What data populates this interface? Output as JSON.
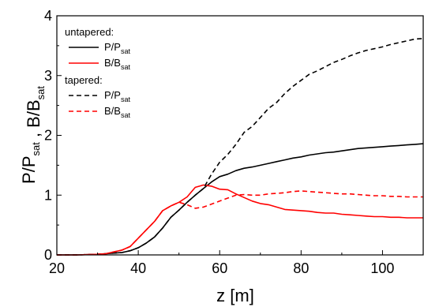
{
  "chart_data": {
    "type": "line",
    "title": "",
    "xlabel": "z [m]",
    "ylabel": {
      "parts": [
        {
          "text": "P/P",
          "sub": "sat"
        },
        {
          "text": " ,  B/B",
          "sub": "sat"
        }
      ]
    },
    "xlim": [
      20,
      110
    ],
    "ylim": [
      0,
      4
    ],
    "xticks": [
      20,
      40,
      60,
      80,
      100
    ],
    "yticks": [
      0,
      1,
      2,
      3,
      4
    ],
    "grid": false,
    "legend": {
      "position": "top-left",
      "groups": [
        {
          "heading": "untapered:",
          "entries": [
            {
              "series": 0,
              "text": "P/P",
              "sub": "sat"
            },
            {
              "series": 1,
              "text": "B/B",
              "sub": "sat"
            }
          ]
        },
        {
          "heading": "tapered:",
          "entries": [
            {
              "series": 2,
              "text": "P/P",
              "sub": "sat"
            },
            {
              "series": 3,
              "text": "B/B",
              "sub": "sat"
            }
          ]
        }
      ]
    },
    "series": [
      {
        "color": "#000000",
        "dash": "solid",
        "x": [
          20,
          25,
          30,
          32,
          34,
          36,
          38,
          40,
          42,
          44,
          46,
          48,
          50,
          52,
          54,
          56,
          58,
          60,
          62,
          64,
          66,
          68,
          70,
          72,
          74,
          76,
          78,
          80,
          82,
          84,
          86,
          88,
          90,
          92,
          94,
          96,
          98,
          100,
          102,
          104,
          106,
          108,
          110
        ],
        "y": [
          0,
          0,
          0.01,
          0.02,
          0.03,
          0.04,
          0.07,
          0.12,
          0.2,
          0.3,
          0.45,
          0.63,
          0.75,
          0.88,
          1.0,
          1.11,
          1.22,
          1.31,
          1.35,
          1.41,
          1.45,
          1.47,
          1.5,
          1.53,
          1.56,
          1.59,
          1.62,
          1.64,
          1.67,
          1.69,
          1.71,
          1.72,
          1.74,
          1.76,
          1.78,
          1.79,
          1.8,
          1.81,
          1.82,
          1.83,
          1.84,
          1.85,
          1.86
        ]
      },
      {
        "color": "#ff0000",
        "dash": "solid",
        "x": [
          20,
          25,
          30,
          32,
          34,
          36,
          38,
          40,
          42,
          44,
          46,
          48,
          50,
          52,
          54,
          56,
          58,
          60,
          62,
          64,
          66,
          68,
          70,
          72,
          74,
          76,
          78,
          80,
          82,
          84,
          86,
          88,
          90,
          92,
          94,
          96,
          98,
          100,
          102,
          104,
          106,
          108,
          110
        ],
        "y": [
          0,
          0,
          0.01,
          0.02,
          0.05,
          0.08,
          0.14,
          0.28,
          0.42,
          0.56,
          0.74,
          0.82,
          0.88,
          0.97,
          1.13,
          1.17,
          1.15,
          1.1,
          1.09,
          1.02,
          0.96,
          0.9,
          0.86,
          0.84,
          0.8,
          0.76,
          0.75,
          0.74,
          0.73,
          0.71,
          0.7,
          0.7,
          0.68,
          0.67,
          0.66,
          0.65,
          0.64,
          0.64,
          0.63,
          0.63,
          0.62,
          0.62,
          0.62
        ]
      },
      {
        "color": "#000000",
        "dash": "dashed",
        "x": [
          20,
          25,
          30,
          32,
          34,
          36,
          38,
          40,
          42,
          44,
          46,
          48,
          50,
          52,
          54,
          56,
          58,
          60,
          62,
          64,
          66,
          68,
          70,
          72,
          74,
          76,
          78,
          80,
          82,
          84,
          86,
          88,
          90,
          92,
          94,
          96,
          98,
          100,
          102,
          104,
          106,
          108,
          110
        ],
        "y": [
          0,
          0,
          0.01,
          0.02,
          0.03,
          0.04,
          0.07,
          0.12,
          0.2,
          0.3,
          0.45,
          0.63,
          0.75,
          0.88,
          1.0,
          1.11,
          1.35,
          1.55,
          1.68,
          1.85,
          2.05,
          2.15,
          2.3,
          2.45,
          2.55,
          2.7,
          2.82,
          2.92,
          3.02,
          3.08,
          3.15,
          3.22,
          3.27,
          3.33,
          3.38,
          3.42,
          3.45,
          3.48,
          3.52,
          3.55,
          3.58,
          3.61,
          3.62
        ]
      },
      {
        "color": "#ff0000",
        "dash": "dashed",
        "x": [
          20,
          25,
          30,
          32,
          34,
          36,
          38,
          40,
          42,
          44,
          46,
          48,
          50,
          52,
          54,
          56,
          58,
          60,
          62,
          64,
          66,
          68,
          70,
          72,
          74,
          76,
          78,
          80,
          82,
          84,
          86,
          88,
          90,
          92,
          94,
          96,
          98,
          100,
          102,
          104,
          106,
          108,
          110
        ],
        "y": [
          0,
          0,
          0.01,
          0.02,
          0.05,
          0.08,
          0.14,
          0.28,
          0.42,
          0.56,
          0.74,
          0.82,
          0.88,
          0.84,
          0.78,
          0.8,
          0.85,
          0.9,
          0.95,
          1.0,
          1.01,
          1.0,
          1.0,
          1.02,
          1.03,
          1.04,
          1.06,
          1.07,
          1.06,
          1.05,
          1.04,
          1.03,
          1.02,
          1.02,
          1.01,
          1.0,
          0.99,
          0.99,
          0.98,
          0.98,
          0.97,
          0.97,
          0.97
        ]
      }
    ]
  }
}
